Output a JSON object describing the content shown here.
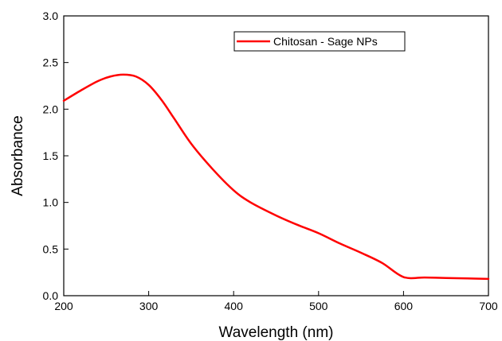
{
  "chart_data": {
    "type": "line",
    "title": "",
    "xlabel": "Wavelength (nm)",
    "ylabel": "Absorbance",
    "xlim": [
      200,
      700
    ],
    "ylim": [
      0.0,
      3.0
    ],
    "x_ticks": [
      200,
      300,
      400,
      500,
      600,
      700
    ],
    "y_ticks": [
      0.0,
      0.5,
      1.0,
      1.5,
      2.0,
      2.5,
      3.0
    ],
    "x_tick_labels": [
      "200",
      "300",
      "400",
      "500",
      "600",
      "700"
    ],
    "y_tick_labels": [
      "0.0",
      "0.5",
      "1.0",
      "1.5",
      "2.0",
      "2.5",
      "3.0"
    ],
    "grid": false,
    "legend": {
      "position": "top-right",
      "framed": true
    },
    "series": [
      {
        "name": "Chitosan - Sage NPs",
        "color": "#ff0000",
        "x": [
          200,
          220,
          240,
          255,
          270,
          285,
          300,
          315,
          330,
          350,
          375,
          400,
          420,
          450,
          475,
          500,
          525,
          550,
          575,
          600,
          625,
          650,
          675,
          700
        ],
        "y": [
          2.09,
          2.2,
          2.3,
          2.35,
          2.37,
          2.35,
          2.26,
          2.1,
          1.9,
          1.63,
          1.36,
          1.13,
          1.0,
          0.86,
          0.76,
          0.67,
          0.56,
          0.46,
          0.35,
          0.2,
          0.195,
          0.19,
          0.185,
          0.18
        ]
      }
    ]
  }
}
